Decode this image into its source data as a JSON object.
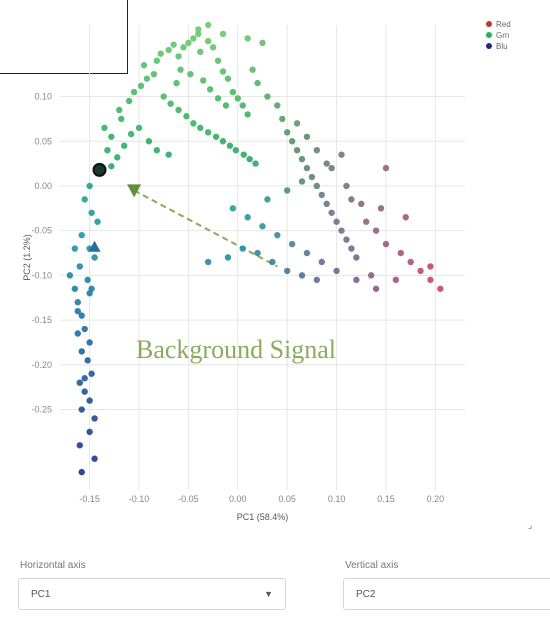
{
  "chart_data": {
    "type": "scatter",
    "title": "",
    "xlabel": "PC1 (58.4%)",
    "ylabel": "PC2 (1.2%)",
    "xlim": [
      -0.18,
      0.23
    ],
    "ylim": [
      -0.34,
      0.18
    ],
    "x_ticks": [
      -0.15,
      -0.1,
      -0.05,
      0.0,
      0.05,
      0.1,
      0.15,
      0.2
    ],
    "x_tick_labels": [
      "-0.15",
      "-0.10",
      "-0.05",
      "0.00",
      "0.05",
      "0.10",
      "0.15",
      "0.20"
    ],
    "y_ticks": [
      0.1,
      0.05,
      0.0,
      -0.05,
      -0.1,
      -0.15,
      -0.2,
      -0.25
    ],
    "y_tick_labels": [
      "0.10",
      "0.05",
      "0.00",
      "-0.05",
      "-0.10",
      "-0.15",
      "-0.20",
      "-0.25"
    ],
    "grid": true,
    "legend_position": "top-right",
    "legend": [
      {
        "label": "Red",
        "color": "#c0392b"
      },
      {
        "label": "Grn",
        "color": "#27ae60"
      },
      {
        "label": "Blu",
        "color": "#1f2a8a"
      }
    ],
    "annotation": "Background Signal",
    "points": [
      [
        -0.15,
        0.0
      ],
      [
        -0.155,
        -0.015
      ],
      [
        -0.148,
        -0.03
      ],
      [
        -0.142,
        -0.04
      ],
      [
        -0.158,
        -0.055
      ],
      [
        -0.15,
        -0.07
      ],
      [
        -0.165,
        -0.07
      ],
      [
        -0.145,
        -0.08
      ],
      [
        -0.16,
        -0.09
      ],
      [
        -0.17,
        -0.1
      ],
      [
        -0.152,
        -0.105
      ],
      [
        -0.165,
        -0.115
      ],
      [
        -0.15,
        -0.12
      ],
      [
        -0.162,
        -0.13
      ],
      [
        -0.158,
        -0.145
      ],
      [
        -0.155,
        -0.16
      ],
      [
        -0.162,
        -0.165
      ],
      [
        -0.15,
        -0.175
      ],
      [
        -0.158,
        -0.185
      ],
      [
        -0.152,
        -0.195
      ],
      [
        -0.148,
        -0.21
      ],
      [
        -0.16,
        -0.22
      ],
      [
        -0.155,
        -0.23
      ],
      [
        -0.15,
        -0.24
      ],
      [
        -0.158,
        -0.25
      ],
      [
        -0.145,
        -0.26
      ],
      [
        -0.15,
        -0.275
      ],
      [
        -0.16,
        -0.29
      ],
      [
        -0.145,
        -0.305
      ],
      [
        -0.158,
        -0.32
      ],
      [
        -0.155,
        -0.215
      ],
      [
        -0.148,
        -0.115
      ],
      [
        -0.162,
        -0.14
      ],
      [
        -0.14,
        0.02
      ],
      [
        -0.132,
        0.04
      ],
      [
        -0.128,
        0.055
      ],
      [
        -0.135,
        0.065
      ],
      [
        -0.118,
        0.075
      ],
      [
        -0.12,
        0.085
      ],
      [
        -0.11,
        0.095
      ],
      [
        -0.105,
        0.105
      ],
      [
        -0.098,
        0.112
      ],
      [
        -0.092,
        0.12
      ],
      [
        -0.085,
        0.125
      ],
      [
        -0.095,
        0.135
      ],
      [
        -0.082,
        0.14
      ],
      [
        -0.078,
        0.148
      ],
      [
        -0.07,
        0.152
      ],
      [
        -0.065,
        0.158
      ],
      [
        -0.06,
        0.145
      ],
      [
        -0.055,
        0.155
      ],
      [
        -0.05,
        0.16
      ],
      [
        -0.045,
        0.165
      ],
      [
        -0.04,
        0.17
      ],
      [
        -0.038,
        0.15
      ],
      [
        -0.03,
        0.162
      ],
      [
        -0.025,
        0.155
      ],
      [
        -0.02,
        0.14
      ],
      [
        -0.015,
        0.128
      ],
      [
        -0.01,
        0.12
      ],
      [
        -0.005,
        0.105
      ],
      [
        0.0,
        0.098
      ],
      [
        0.005,
        0.09
      ],
      [
        0.01,
        0.08
      ],
      [
        -0.058,
        0.13
      ],
      [
        -0.062,
        0.115
      ],
      [
        -0.048,
        0.125
      ],
      [
        -0.035,
        0.118
      ],
      [
        -0.028,
        0.108
      ],
      [
        -0.02,
        0.098
      ],
      [
        -0.012,
        0.09
      ],
      [
        -0.075,
        0.1
      ],
      [
        -0.068,
        0.092
      ],
      [
        -0.06,
        0.085
      ],
      [
        -0.052,
        0.078
      ],
      [
        -0.045,
        0.07
      ],
      [
        -0.038,
        0.065
      ],
      [
        -0.03,
        0.06
      ],
      [
        -0.022,
        0.055
      ],
      [
        -0.015,
        0.05
      ],
      [
        -0.008,
        0.045
      ],
      [
        -0.002,
        0.04
      ],
      [
        0.006,
        0.035
      ],
      [
        0.012,
        0.03
      ],
      [
        0.018,
        0.025
      ],
      [
        -0.09,
        0.05
      ],
      [
        -0.082,
        0.04
      ],
      [
        -0.07,
        0.035
      ],
      [
        -0.1,
        0.065
      ],
      [
        -0.108,
        0.058
      ],
      [
        -0.115,
        0.045
      ],
      [
        -0.122,
        0.032
      ],
      [
        -0.128,
        0.022
      ],
      [
        -0.04,
        0.175
      ],
      [
        -0.03,
        0.18
      ],
      [
        -0.015,
        0.17
      ],
      [
        0.01,
        0.165
      ],
      [
        0.025,
        0.16
      ],
      [
        0.015,
        0.13
      ],
      [
        0.02,
        0.115
      ],
      [
        0.03,
        0.1
      ],
      [
        0.04,
        0.09
      ],
      [
        0.045,
        0.075
      ],
      [
        0.05,
        0.06
      ],
      [
        0.055,
        0.05
      ],
      [
        0.06,
        0.04
      ],
      [
        0.065,
        0.03
      ],
      [
        0.07,
        0.02
      ],
      [
        0.075,
        0.01
      ],
      [
        0.08,
        0.0
      ],
      [
        0.085,
        -0.01
      ],
      [
        0.09,
        -0.02
      ],
      [
        0.095,
        -0.03
      ],
      [
        0.1,
        -0.04
      ],
      [
        0.105,
        -0.05
      ],
      [
        0.11,
        -0.06
      ],
      [
        0.115,
        -0.07
      ],
      [
        0.12,
        -0.08
      ],
      [
        0.06,
        0.07
      ],
      [
        0.07,
        0.055
      ],
      [
        0.08,
        0.04
      ],
      [
        0.095,
        0.02
      ],
      [
        0.11,
        0.0
      ],
      [
        0.125,
        -0.02
      ],
      [
        0.13,
        -0.04
      ],
      [
        0.14,
        -0.05
      ],
      [
        0.15,
        -0.065
      ],
      [
        0.165,
        -0.075
      ],
      [
        0.175,
        -0.085
      ],
      [
        0.185,
        -0.095
      ],
      [
        0.195,
        -0.105
      ],
      [
        0.205,
        -0.115
      ],
      [
        0.16,
        -0.105
      ],
      [
        0.14,
        -0.115
      ],
      [
        0.12,
        -0.105
      ],
      [
        0.1,
        -0.095
      ],
      [
        0.085,
        -0.085
      ],
      [
        0.07,
        -0.075
      ],
      [
        0.055,
        -0.065
      ],
      [
        0.04,
        -0.055
      ],
      [
        0.025,
        -0.045
      ],
      [
        0.01,
        -0.035
      ],
      [
        -0.005,
        -0.025
      ],
      [
        0.03,
        -0.015
      ],
      [
        0.05,
        -0.005
      ],
      [
        0.065,
        0.005
      ],
      [
        0.09,
        0.025
      ],
      [
        0.105,
        0.035
      ],
      [
        0.02,
        -0.075
      ],
      [
        0.035,
        -0.085
      ],
      [
        0.05,
        -0.095
      ],
      [
        0.065,
        -0.1
      ],
      [
        0.08,
        -0.105
      ],
      [
        -0.03,
        -0.085
      ],
      [
        -0.01,
        -0.08
      ],
      [
        0.005,
        -0.07
      ],
      [
        0.15,
        0.02
      ],
      [
        0.195,
        -0.09
      ],
      [
        0.17,
        -0.035
      ],
      [
        0.145,
        -0.025
      ],
      [
        0.115,
        -0.015
      ],
      [
        0.135,
        -0.1
      ]
    ],
    "highlight": {
      "x": -0.14,
      "y": 0.018
    },
    "centroid": {
      "x": -0.105,
      "y": -0.005
    },
    "centroid2": {
      "x": -0.145,
      "y": -0.068
    },
    "trend_line": [
      [
        -0.105,
        -0.005
      ],
      [
        0.04,
        -0.09
      ]
    ]
  },
  "controls": {
    "x_axis": {
      "label": "Horizontal axis",
      "value": "PC1"
    },
    "y_axis": {
      "label": "Vertical axis",
      "value": "PC2"
    }
  }
}
